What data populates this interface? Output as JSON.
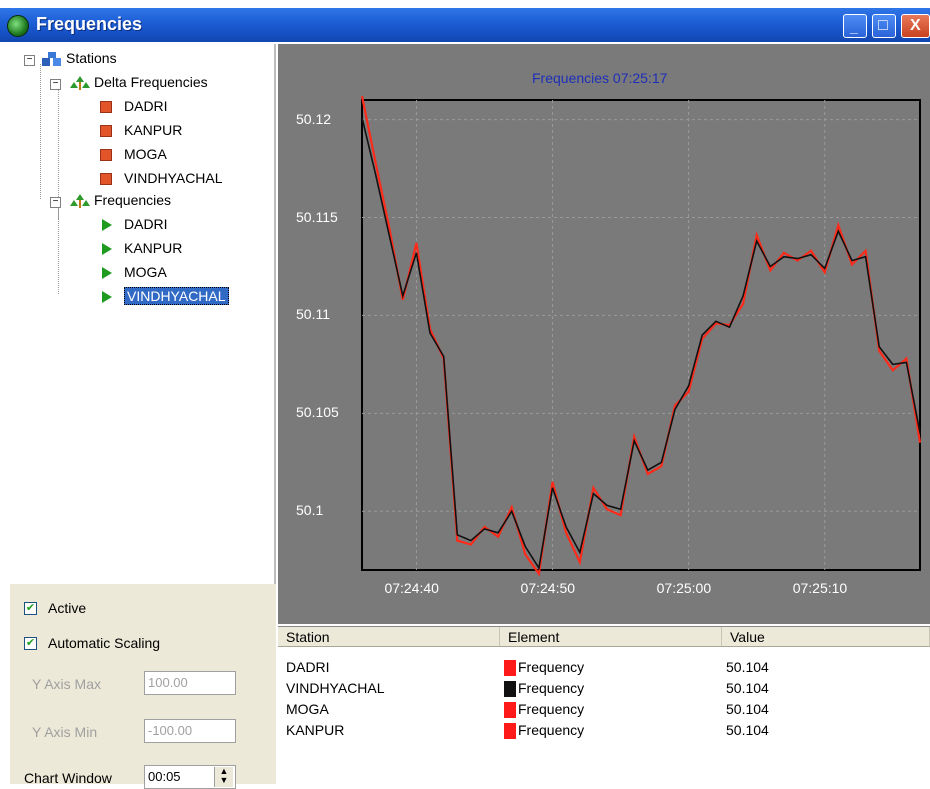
{
  "window": {
    "title": "Frequencies",
    "minimize": "_",
    "maximize": "□",
    "close": "X"
  },
  "tree": {
    "root": "Stations",
    "groups": [
      {
        "label": "Delta Frequencies",
        "items": [
          "DADRI",
          "KANPUR",
          "MOGA",
          "VINDHYACHAL"
        ]
      },
      {
        "label": "Frequencies",
        "items": [
          "DADRI",
          "KANPUR",
          "MOGA",
          "VINDHYACHAL"
        ],
        "selected": "VINDHYACHAL"
      }
    ]
  },
  "options": {
    "active": {
      "label": "Active",
      "checked": true
    },
    "auto_scaling": {
      "label": "Automatic Scaling",
      "checked": true
    },
    "y_max": {
      "label": "Y Axis Max",
      "value": "100.00"
    },
    "y_min": {
      "label": "Y Axis Min",
      "value": "-100.00"
    },
    "chart_window": {
      "label": "Chart Window",
      "value": "00:05"
    }
  },
  "chart_data": {
    "type": "line",
    "title": "Frequencies 07:25:17",
    "xlabel": "",
    "ylabel": "",
    "x_ticks": [
      "07:24:40",
      "07:24:50",
      "07:25:00",
      "07:25:10"
    ],
    "y_ticks": [
      "50.12",
      "50.115",
      "50.11",
      "50.105",
      "50.1"
    ],
    "xlim_seconds_label_range": [
      "07:24:36",
      "07:25:17"
    ],
    "ylim": [
      50.097,
      50.121
    ],
    "grid": true,
    "series": [
      {
        "color": "#ff2a1a",
        "x": [
          0,
          1,
          2,
          3,
          4,
          5,
          6,
          7,
          8,
          9,
          10,
          11,
          12,
          13,
          14,
          15,
          16,
          17,
          18,
          19,
          20,
          21,
          22,
          23,
          24,
          25,
          26,
          27,
          28,
          29,
          30,
          31,
          32,
          33,
          34,
          35,
          36,
          37,
          38,
          39,
          40,
          41
        ],
        "values": [
          50.1212,
          50.1178,
          50.1145,
          50.1108,
          50.1137,
          50.1093,
          50.1078,
          50.0985,
          50.0983,
          50.0992,
          50.0987,
          50.1002,
          50.0978,
          50.0968,
          50.1015,
          50.0989,
          50.0974,
          50.1012,
          50.1001,
          50.0998,
          50.1038,
          50.1019,
          50.1023,
          50.1054,
          50.1061,
          50.1088,
          50.1096,
          50.1095,
          50.1106,
          50.1141,
          50.1123,
          50.1132,
          50.1128,
          50.1133,
          50.1122,
          50.1146,
          50.1126,
          50.1133,
          50.1082,
          50.1072,
          50.1078,
          50.1035
        ]
      },
      {
        "color": "#111111",
        "x": [
          0,
          1,
          2,
          3,
          4,
          5,
          6,
          7,
          8,
          9,
          10,
          11,
          12,
          13,
          14,
          15,
          16,
          17,
          18,
          19,
          20,
          21,
          22,
          23,
          24,
          25,
          26,
          27,
          28,
          29,
          30,
          31,
          32,
          33,
          34,
          35,
          36,
          37,
          38,
          39,
          40,
          41
        ],
        "values": [
          50.1201,
          50.1172,
          50.1141,
          50.111,
          50.1132,
          50.1091,
          50.1079,
          50.0988,
          50.0985,
          50.0991,
          50.0989,
          50.1,
          50.0982,
          50.0971,
          50.1012,
          50.0992,
          50.0979,
          50.1009,
          50.1003,
          50.1001,
          50.1036,
          50.1021,
          50.1025,
          50.1052,
          50.1064,
          50.109,
          50.1097,
          50.1094,
          50.111,
          50.1138,
          50.1125,
          50.113,
          50.1129,
          50.1131,
          50.1124,
          50.1143,
          50.1128,
          50.113,
          50.1084,
          50.1075,
          50.1076,
          50.104
        ]
      }
    ]
  },
  "table": {
    "headers": [
      "Station",
      "Element",
      "Value"
    ],
    "rows": [
      {
        "station": "DADRI",
        "element": "Frequency",
        "color": "#ff1a1a",
        "value": "50.104"
      },
      {
        "station": "VINDHYACHAL",
        "element": "Frequency",
        "color": "#111111",
        "value": "50.104"
      },
      {
        "station": "MOGA",
        "element": "Frequency",
        "color": "#ff1a1a",
        "value": "50.104"
      },
      {
        "station": "KANPUR",
        "element": "Frequency",
        "color": "#ff1a1a",
        "value": "50.104"
      }
    ]
  }
}
